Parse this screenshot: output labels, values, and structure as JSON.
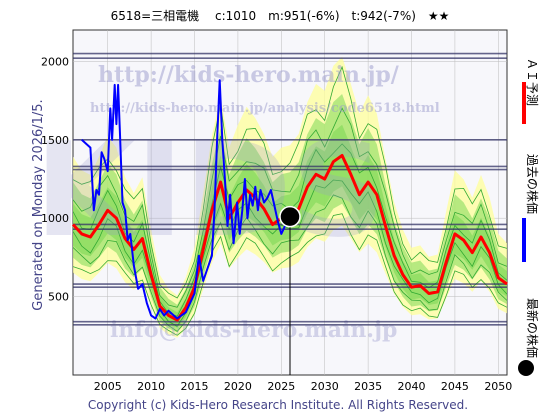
{
  "header": {
    "title": "6518=三相電機　 c:1010　m:951(-6%)　t:942(-7%)　★★"
  },
  "side_label": "Generated on Monday 2026/1/5.",
  "watermarks": {
    "url_top": "http://kids-hero.main.jp/",
    "url_mid": "http://kids-hero.main.jp/analysis/code6518.html",
    "big": "KIDS",
    "mail": "info@kids-hero.main.jp"
  },
  "legend": {
    "ai": "ＡＩ予測",
    "past": "過去の株価",
    "latest": "最新の株価"
  },
  "footer": "Copyright (c) Kids-Hero Research Institute. All Rights Reserved.",
  "colors": {
    "ai": "#ff0000",
    "past": "#0000ff",
    "band_outer": "#ffff99",
    "band_green": "#7ed957",
    "band_line": "#33aa33",
    "hline": "#333366",
    "grid": "#bbbbbb"
  },
  "chart_data": {
    "type": "line",
    "xlim": [
      2001,
      2051
    ],
    "ylim": [
      0,
      2200
    ],
    "x_ticks": [
      2005,
      2010,
      2015,
      2020,
      2025,
      2030,
      2035,
      2040,
      2045,
      2050
    ],
    "y_ticks": [
      500,
      1000,
      1500,
      2000
    ],
    "current_marker": {
      "x": 2026.0,
      "y": 1010
    },
    "hlines": [
      2050,
      2020,
      1500,
      1330,
      1310,
      960,
      930,
      580,
      560,
      340,
      320
    ],
    "series": [
      {
        "kind": "ai_forecast",
        "points": [
          [
            2001,
            960
          ],
          [
            2002,
            900
          ],
          [
            2003,
            880
          ],
          [
            2004,
            960
          ],
          [
            2005,
            1050
          ],
          [
            2006,
            1000
          ],
          [
            2007,
            870
          ],
          [
            2008,
            800
          ],
          [
            2009,
            870
          ],
          [
            2010,
            640
          ],
          [
            2011,
            440
          ],
          [
            2012,
            380
          ],
          [
            2013,
            350
          ],
          [
            2014,
            430
          ],
          [
            2015,
            560
          ],
          [
            2016,
            800
          ],
          [
            2017,
            1050
          ],
          [
            2018,
            1230
          ],
          [
            2019,
            1000
          ],
          [
            2020,
            1100
          ],
          [
            2021,
            1180
          ],
          [
            2022,
            1130
          ],
          [
            2023,
            1060
          ],
          [
            2024,
            960
          ],
          [
            2025,
            1000
          ],
          [
            2026,
            1010
          ],
          [
            2027,
            1060
          ],
          [
            2028,
            1200
          ],
          [
            2029,
            1280
          ],
          [
            2030,
            1250
          ],
          [
            2031,
            1360
          ],
          [
            2032,
            1400
          ],
          [
            2033,
            1280
          ],
          [
            2034,
            1150
          ],
          [
            2035,
            1230
          ],
          [
            2036,
            1150
          ],
          [
            2037,
            950
          ],
          [
            2038,
            760
          ],
          [
            2039,
            640
          ],
          [
            2040,
            560
          ],
          [
            2041,
            570
          ],
          [
            2042,
            520
          ],
          [
            2043,
            530
          ],
          [
            2044,
            720
          ],
          [
            2045,
            900
          ],
          [
            2046,
            860
          ],
          [
            2047,
            780
          ],
          [
            2048,
            880
          ],
          [
            2049,
            780
          ],
          [
            2050,
            620
          ],
          [
            2051,
            580
          ]
        ]
      },
      {
        "kind": "past_price",
        "points": [
          [
            2002,
            1500
          ],
          [
            2003,
            1450
          ],
          [
            2003.4,
            1050
          ],
          [
            2003.7,
            1180
          ],
          [
            2004,
            1150
          ],
          [
            2004.3,
            1420
          ],
          [
            2004.6,
            1380
          ],
          [
            2005,
            1300
          ],
          [
            2005.3,
            1700
          ],
          [
            2005.5,
            1500
          ],
          [
            2005.8,
            1850
          ],
          [
            2006,
            1600
          ],
          [
            2006.2,
            1850
          ],
          [
            2006.4,
            1550
          ],
          [
            2006.7,
            1100
          ],
          [
            2007,
            1050
          ],
          [
            2007.3,
            860
          ],
          [
            2007.6,
            900
          ],
          [
            2008,
            700
          ],
          [
            2008.5,
            550
          ],
          [
            2009,
            580
          ],
          [
            2009.5,
            460
          ],
          [
            2010,
            380
          ],
          [
            2010.5,
            360
          ],
          [
            2011,
            420
          ],
          [
            2011.5,
            380
          ],
          [
            2012,
            410
          ],
          [
            2013,
            360
          ],
          [
            2014,
            400
          ],
          [
            2015,
            520
          ],
          [
            2015.5,
            760
          ],
          [
            2016,
            600
          ],
          [
            2016.5,
            680
          ],
          [
            2017,
            760
          ],
          [
            2017.3,
            1050
          ],
          [
            2017.6,
            1500
          ],
          [
            2017.9,
            1880
          ],
          [
            2018.2,
            1500
          ],
          [
            2018.5,
            1250
          ],
          [
            2018.8,
            950
          ],
          [
            2019.1,
            1150
          ],
          [
            2019.5,
            840
          ],
          [
            2019.9,
            1100
          ],
          [
            2020.2,
            900
          ],
          [
            2020.5,
            1050
          ],
          [
            2020.8,
            1250
          ],
          [
            2021.1,
            1000
          ],
          [
            2021.4,
            1150
          ],
          [
            2021.7,
            1080
          ],
          [
            2022,
            1200
          ],
          [
            2022.3,
            1050
          ],
          [
            2022.6,
            1180
          ],
          [
            2023,
            1100
          ],
          [
            2023.4,
            1130
          ],
          [
            2023.8,
            1180
          ],
          [
            2024.2,
            1080
          ],
          [
            2024.6,
            980
          ],
          [
            2025,
            900
          ],
          [
            2025.5,
            960
          ],
          [
            2026,
            1010
          ]
        ]
      }
    ]
  }
}
